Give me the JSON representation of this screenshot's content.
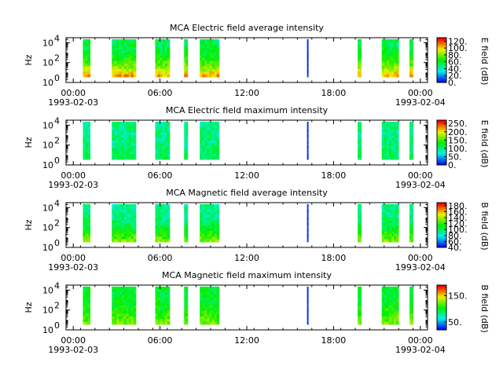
{
  "chart_data": [
    {
      "type": "heatmap",
      "title": "MCA  Electric field average intensity",
      "ylabel": "Hz",
      "y_scale": "log",
      "ylim": [
        1,
        31623
      ],
      "y_ticks": [
        {
          "base": "10",
          "exp": "0"
        },
        {
          "base": "10",
          "exp": "2"
        },
        {
          "base": "10",
          "exp": "4"
        }
      ],
      "colorbar_label": "E field (dB)",
      "colorbar_ticks": [
        "0.",
        "20.",
        "40.",
        "60.",
        "80.",
        "100.",
        "120."
      ],
      "colorbar_range": [
        0,
        130
      ],
      "palette": "rainbow",
      "base_level": 0.42,
      "low_band_level": 0.82
    },
    {
      "type": "heatmap",
      "title": "MCA  Electric field maximum intensity",
      "ylabel": "Hz",
      "y_scale": "log",
      "ylim": [
        1,
        31623
      ],
      "y_ticks": [
        {
          "base": "10",
          "exp": "0"
        },
        {
          "base": "10",
          "exp": "2"
        },
        {
          "base": "10",
          "exp": "4"
        }
      ],
      "colorbar_label": "E field (dB)",
      "colorbar_ticks": [
        "0.",
        "50.",
        "100.",
        "150.",
        "200.",
        "250."
      ],
      "colorbar_range": [
        0,
        270
      ],
      "palette": "rainbow",
      "base_level": 0.36,
      "low_band_level": 0.42
    },
    {
      "type": "heatmap",
      "title": "MCA  Magnetic field average intensity",
      "ylabel": "Hz",
      "y_scale": "log",
      "ylim": [
        1,
        31623
      ],
      "y_ticks": [
        {
          "base": "10",
          "exp": "0"
        },
        {
          "base": "10",
          "exp": "2"
        },
        {
          "base": "10",
          "exp": "4"
        }
      ],
      "colorbar_label": "B field (dB)",
      "colorbar_ticks": [
        "40.",
        "60.",
        "80.",
        "100.",
        "120.",
        "140.",
        "160.",
        "180."
      ],
      "colorbar_range": [
        40,
        190
      ],
      "palette": "rainbow",
      "base_level": 0.35,
      "low_band_level": 0.62
    },
    {
      "type": "heatmap",
      "title": "MCA  Magnetic field maximum intensity",
      "ylabel": "Hz",
      "y_scale": "log",
      "ylim": [
        1,
        31623
      ],
      "y_ticks": [
        {
          "base": "10",
          "exp": "0"
        },
        {
          "base": "10",
          "exp": "2"
        },
        {
          "base": "10",
          "exp": "4"
        }
      ],
      "colorbar_label": "B field (dB)",
      "colorbar_ticks": [
        "50.",
        "150."
      ],
      "colorbar_range": [
        20,
        190
      ],
      "palette": "rainbow",
      "base_level": 0.45,
      "low_band_level": 0.62
    }
  ],
  "time_axis": {
    "start": "1993-02-03 00:00",
    "end": "1993-02-04 00:00",
    "tick_labels": [
      "00:00",
      "06:00",
      "12:00",
      "18:00",
      "00:00"
    ],
    "date_labels": [
      "1993-02-03",
      "",
      "",
      "",
      "1993-02-04"
    ]
  },
  "data_intervals": [
    {
      "start": "00:40",
      "end": "01:10"
    },
    {
      "start": "02:40",
      "end": "04:20"
    },
    {
      "start": "05:40",
      "end": "06:40"
    },
    {
      "start": "07:40",
      "end": "07:55"
    },
    {
      "start": "08:45",
      "end": "10:05"
    },
    {
      "start": "16:10",
      "end": "16:12"
    },
    {
      "start": "19:40",
      "end": "19:55"
    },
    {
      "start": "21:20",
      "end": "22:30"
    },
    {
      "start": "23:15",
      "end": "23:30"
    }
  ]
}
